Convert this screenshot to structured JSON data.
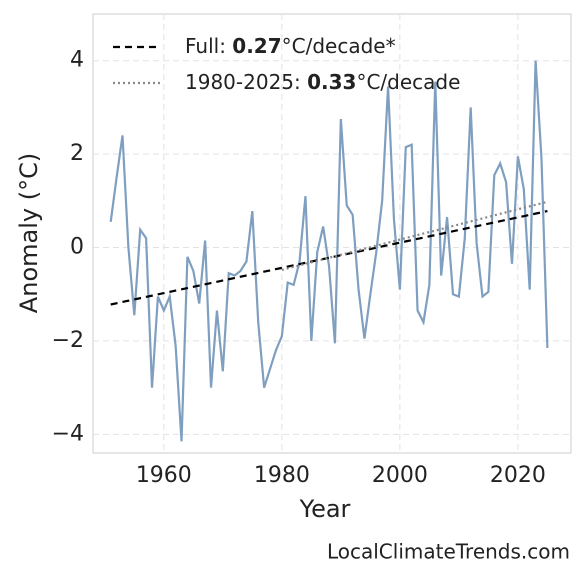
{
  "chart_data": {
    "type": "line",
    "xlabel": "Year",
    "ylabel": "Anomaly (°C)",
    "footer": "LocalClimateTrends.com",
    "xlim": [
      1948,
      2029
    ],
    "ylim": [
      -4.4,
      5
    ],
    "xticks": [
      1960,
      1980,
      2000,
      2020
    ],
    "yticks": [
      {
        "value": -4,
        "label": "−4"
      },
      {
        "value": -2,
        "label": "−2"
      },
      0,
      2,
      4
    ],
    "grid": true,
    "x": [
      1951,
      1952,
      1953,
      1954,
      1955,
      1956,
      1957,
      1958,
      1959,
      1960,
      1961,
      1962,
      1963,
      1964,
      1965,
      1966,
      1967,
      1968,
      1969,
      1970,
      1971,
      1972,
      1973,
      1974,
      1975,
      1976,
      1977,
      1978,
      1979,
      1980,
      1981,
      1982,
      1983,
      1984,
      1985,
      1986,
      1987,
      1988,
      1989,
      1990,
      1991,
      1992,
      1993,
      1994,
      1995,
      1996,
      1997,
      1998,
      1999,
      2000,
      2001,
      2002,
      2003,
      2004,
      2005,
      2006,
      2007,
      2008,
      2009,
      2010,
      2011,
      2012,
      2013,
      2014,
      2015,
      2016,
      2017,
      2018,
      2019,
      2020,
      2021,
      2022,
      2023,
      2024,
      2025
    ],
    "series": [
      {
        "color": "#7f9fc0",
        "values": [
          0.55,
          1.5,
          2.4,
          0.0,
          -1.45,
          0.38,
          0.2,
          -3.0,
          -1.05,
          -1.35,
          -1.05,
          -2.1,
          -4.15,
          -0.2,
          -0.5,
          -1.2,
          0.15,
          -3.0,
          -1.35,
          -2.65,
          -0.55,
          -0.6,
          -0.5,
          -0.3,
          0.78,
          -1.6,
          -3.0,
          -2.6,
          -2.2,
          -1.9,
          -0.75,
          -0.8,
          -0.3,
          1.1,
          -2.0,
          -0.1,
          0.45,
          -0.4,
          -2.05,
          2.75,
          0.9,
          0.7,
          -0.9,
          -1.95,
          -1.0,
          -0.1,
          1.0,
          3.45,
          0.6,
          -0.9,
          2.15,
          2.2,
          -1.35,
          -1.6,
          -0.8,
          3.55,
          -0.6,
          0.65,
          -1.0,
          -1.05,
          0.2,
          3.0,
          0.1,
          -1.05,
          -0.95,
          1.55,
          1.8,
          1.4,
          -0.35,
          1.95,
          1.25,
          -0.9,
          4.0,
          1.9,
          -2.15
        ]
      }
    ],
    "trends": [
      {
        "name_prefix": "Full: ",
        "slope": 0.27,
        "name_suffix": "°C/decade*",
        "color": "#000000",
        "dash": "7 5",
        "x": [
          1951,
          2025
        ],
        "values": [
          -1.22,
          0.78
        ]
      },
      {
        "name_prefix": "1980-2025: ",
        "slope": 0.33,
        "name_suffix": "°C/decade",
        "color": "#888888",
        "dash": "2 3",
        "x": [
          1980,
          2025
        ],
        "values": [
          -0.48,
          0.98
        ]
      }
    ]
  }
}
